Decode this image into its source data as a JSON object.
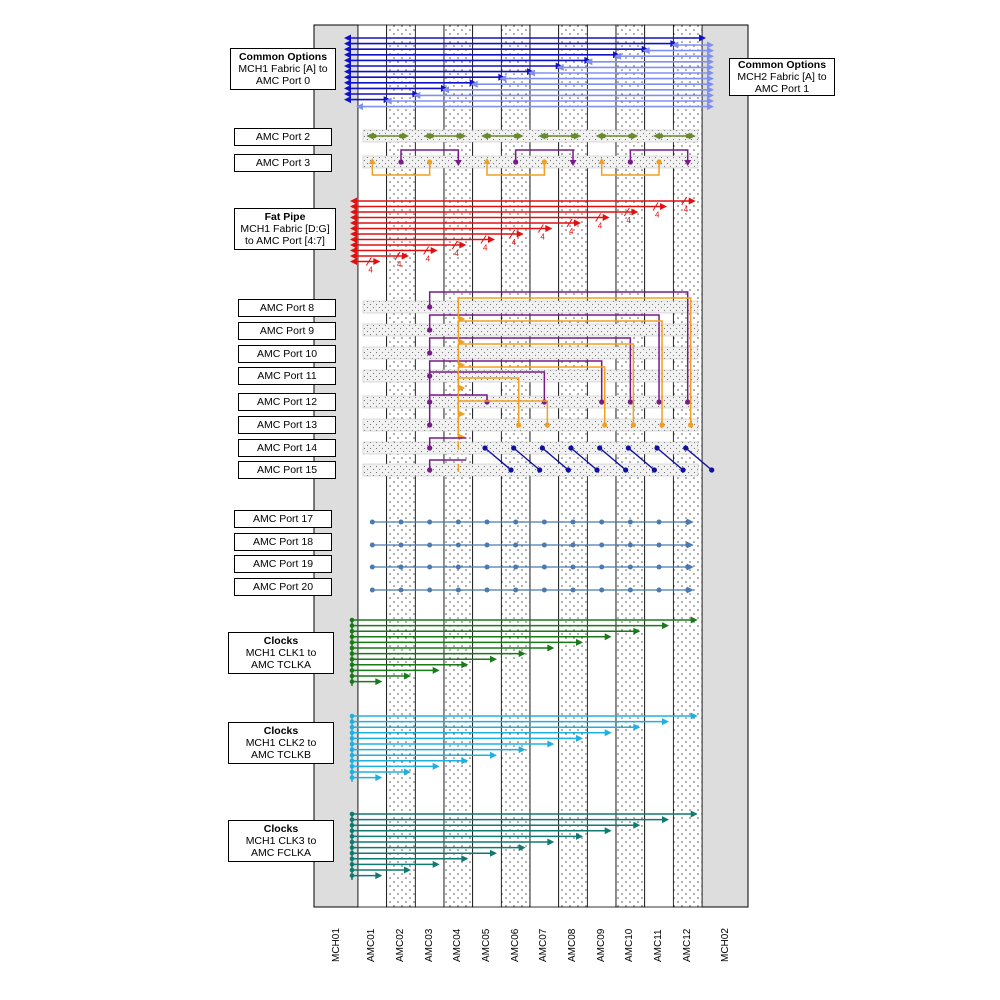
{
  "slots": [
    "MCH01",
    "AMC01",
    "AMC02",
    "AMC03",
    "AMC04",
    "AMC05",
    "AMC06",
    "AMC07",
    "AMC08",
    "AMC09",
    "AMC10",
    "AMC11",
    "AMC12",
    "MCH02"
  ],
  "labels": {
    "common1": {
      "title": "Common Options",
      "line1": "MCH1 Fabric [A] to",
      "line2": "AMC Port 0"
    },
    "common2": {
      "title": "Common Options",
      "line1": "MCH2 Fabric [A] to",
      "line2": "AMC Port 1"
    },
    "port2": "AMC Port 2",
    "port3": "AMC Port 3",
    "fatpipe": {
      "title": "Fat Pipe",
      "line1": "MCH1 Fabric [D:G]",
      "line2": "to AMC Port [4:7]"
    },
    "port8": "AMC Port 8",
    "port9": "AMC Port 9",
    "port10": "AMC Port 10",
    "port11": "AMC Port 11",
    "port12": "AMC Port 12",
    "port13": "AMC Port 13",
    "port14": "AMC Port 14",
    "port15": "AMC Port 15",
    "port17": "AMC Port 17",
    "port18": "AMC Port 18",
    "port19": "AMC Port 19",
    "port20": "AMC Port 20",
    "clk1": {
      "title": "Clocks",
      "line1": "MCH1 CLK1 to",
      "line2": "AMC TCLKA"
    },
    "clk2": {
      "title": "Clocks",
      "line1": "MCH1 CLK2 to",
      "line2": "AMC TCLKB"
    },
    "clk3": {
      "title": "Clocks",
      "line1": "MCH1 CLK3 to",
      "line2": "AMC FCLKA"
    }
  },
  "fat_pipe_bus_width": "4",
  "colors": {
    "mch1_fabric": "#1010c8",
    "mch2_fabric": "#8090f0",
    "port2": "#6a8a30",
    "purple": "#7a1a8a",
    "orange": "#f0a020",
    "fat_pipe": "#e01010",
    "port14_15": "#1010a0",
    "ports17_20": "#4a7ab0",
    "clk1": "#1a7a1a",
    "clk2": "#20b0e0",
    "clk3": "#107a70"
  }
}
